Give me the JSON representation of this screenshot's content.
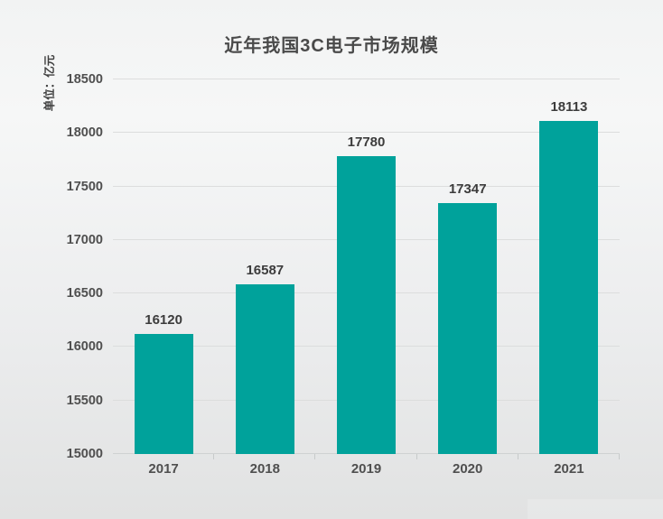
{
  "chart_data": {
    "type": "bar",
    "title": "近年我国3C电子市场规模",
    "unit": "单位：亿元",
    "categories": [
      "2017",
      "2018",
      "2019",
      "2020",
      "2021"
    ],
    "values": [
      16120,
      16587,
      17780,
      17347,
      18113
    ],
    "ylim": [
      15000,
      18500
    ],
    "ytick_step": 500,
    "yticks": [
      15000,
      15500,
      16000,
      16500,
      17000,
      17500,
      18000,
      18500
    ],
    "grid": true,
    "legend": false,
    "bar_color": "#00A29B"
  },
  "colors": {
    "bar": "#00A29B",
    "title_text": "#4a4a4a",
    "axis_text": "#4f4f4f",
    "value_label_text": "#3c3c3c",
    "gridline": "#dcdddd"
  }
}
